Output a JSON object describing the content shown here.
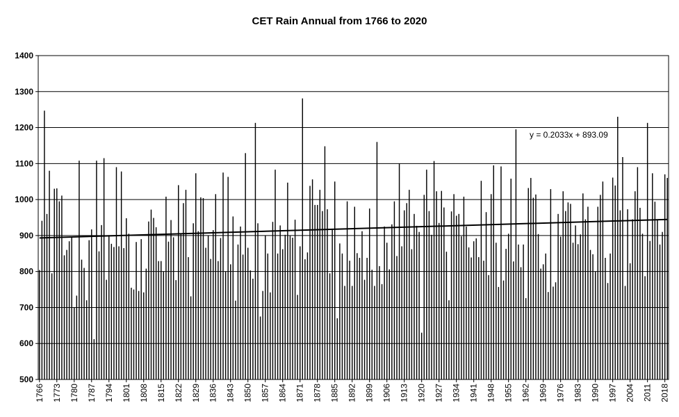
{
  "chart_data": {
    "type": "bar",
    "title": "CET Rain Annual from 1766 to 2020",
    "xlabel": "",
    "ylabel": "",
    "ylim": [
      500,
      1400
    ],
    "yticks": [
      500,
      600,
      700,
      800,
      900,
      1000,
      1100,
      1200,
      1300,
      1400
    ],
    "grid": true,
    "x_start": 1766,
    "x_end": 2020,
    "xtick_labels": [
      "1766",
      "1773",
      "1780",
      "1787",
      "1794",
      "1801",
      "1808",
      "1815",
      "1822",
      "1829",
      "1836",
      "1843",
      "1850",
      "1857",
      "1864",
      "1871",
      "1878",
      "1885",
      "1892",
      "1899",
      "1906",
      "1913",
      "1920",
      "1927",
      "1934",
      "1941",
      "1948",
      "1955",
      "1962",
      "1969",
      "1976",
      "1983",
      "1990",
      "1997",
      "2004",
      "2011",
      "2018"
    ],
    "values": [
      804,
      941,
      1247,
      960,
      1080,
      795,
      1030,
      1031,
      995,
      1011,
      845,
      860,
      884,
      897,
      700,
      733,
      1108,
      833,
      810,
      720,
      887,
      917,
      612,
      1108,
      856,
      929,
      1115,
      777,
      901,
      877,
      868,
      1090,
      870,
      1078,
      865,
      948,
      905,
      755,
      750,
      882,
      746,
      890,
      742,
      808,
      939,
      972,
      949,
      923,
      829,
      829,
      800,
      1008,
      883,
      943,
      895,
      776,
      1040,
      905,
      990,
      1027,
      840,
      731,
      934,
      1073,
      912,
      1006,
      1004,
      866,
      900,
      835,
      915,
      1015,
      829,
      893,
      1075,
      800,
      1063,
      820,
      953,
      719,
      875,
      925,
      847,
      1129,
      866,
      803,
      780,
      1213,
      934,
      675,
      746,
      900,
      850,
      742,
      938,
      1083,
      850,
      928,
      862,
      902,
      1047,
      899,
      894,
      944,
      735,
      870,
      1281,
      834,
      853,
      1038,
      1056,
      985,
      985,
      1027,
      968,
      1148,
      973,
      795,
      917,
      1050,
      670,
      878,
      850,
      760,
      995,
      830,
      760,
      980,
      851,
      838,
      912,
      777,
      838,
      975,
      805,
      760,
      1160,
      815,
      765,
      925,
      880,
      806,
      931,
      995,
      843,
      1100,
      870,
      970,
      990,
      1027,
      862,
      960,
      927,
      910,
      630,
      1013,
      1083,
      968,
      902,
      1107,
      1023,
      935,
      1024,
      978,
      855,
      720,
      967,
      1015,
      955,
      960,
      898,
      1008,
      925,
      867,
      839,
      884,
      892,
      840,
      1052,
      830,
      965,
      790,
      1015,
      1095,
      880,
      757,
      1092,
      775,
      863,
      905,
      1058,
      828,
      1195,
      875,
      812,
      875,
      726,
      1032,
      1060,
      1005,
      1014,
      904,
      808,
      820,
      850,
      743,
      1029,
      758,
      770,
      960,
      897,
      1023,
      968,
      992,
      988,
      880,
      928,
      876,
      903,
      1017,
      945,
      980,
      860,
      848,
      800,
      980,
      1013,
      1050,
      838,
      768,
      850,
      1061,
      1039,
      1230,
      970,
      1118,
      760,
      973,
      823,
      945,
      1023,
      1090,
      977,
      905,
      787,
      1213,
      885,
      1073,
      994,
      945,
      875,
      910,
      1070,
      1060
    ],
    "trendline": {
      "slope": 0.2033,
      "intercept": 893.09,
      "equation": "y = 0.2033x + 893.09"
    }
  }
}
